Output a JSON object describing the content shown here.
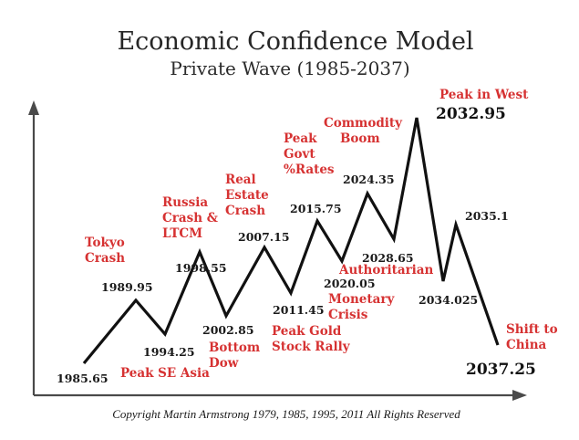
{
  "title": "Economic Confidence Model",
  "subtitle": "Private Wave (1985-2037)",
  "copyright": "Copyright Martin Armstrong 1979, 1985, 1995, 2011 All Rights Reserved",
  "colors": {
    "events": "#d63232",
    "wave": "#111111",
    "axis": "#4a4a4a"
  },
  "wave_points": [
    {
      "id": "p0",
      "date": "1985.65",
      "kind": "low"
    },
    {
      "id": "p1",
      "date": "1989.95",
      "kind": "high"
    },
    {
      "id": "p2",
      "date": "1994.25",
      "kind": "low"
    },
    {
      "id": "p3",
      "date": "1998.55",
      "kind": "high"
    },
    {
      "id": "p4",
      "date": "2002.85",
      "kind": "low"
    },
    {
      "id": "p5",
      "date": "2007.15",
      "kind": "high"
    },
    {
      "id": "p6",
      "date": "2011.45",
      "kind": "low"
    },
    {
      "id": "p7",
      "date": "2015.75",
      "kind": "high"
    },
    {
      "id": "p8",
      "date": "2020.05",
      "kind": "low"
    },
    {
      "id": "p9",
      "date": "2024.35",
      "kind": "high"
    },
    {
      "id": "p10",
      "date": "2028.65",
      "kind": "low"
    },
    {
      "id": "p11",
      "date": "2032.95",
      "kind": "peak"
    },
    {
      "id": "p12",
      "date": "2034.025",
      "kind": "low"
    },
    {
      "id": "p13",
      "date": "2035.1",
      "kind": "high"
    },
    {
      "id": "p14",
      "date": "2037.25",
      "kind": "end"
    }
  ],
  "events": {
    "tokyo_crash": [
      "Tokyo",
      "Crash"
    ],
    "peak_se_asia": [
      "Peak SE Asia"
    ],
    "russia_crash": [
      "Russia",
      "Crash &",
      "LTCM"
    ],
    "bottom_dow": [
      "Bottom",
      "Dow"
    ],
    "real_estate_crash": [
      "Real",
      "Estate",
      "Crash"
    ],
    "peak_gold": [
      "Peak Gold",
      "Stock Rally"
    ],
    "peak_govt_rates": [
      "Peak",
      "Govt",
      "%Rates"
    ],
    "monetary_crisis": [
      "Monetary",
      "Crisis"
    ],
    "commodity_boom": [
      "Commodity",
      "Boom"
    ],
    "authoritarian": [
      "Authoritarian"
    ],
    "peak_in_west": [
      "Peak in West"
    ],
    "shift_to_china": [
      "Shift to",
      "China"
    ]
  }
}
